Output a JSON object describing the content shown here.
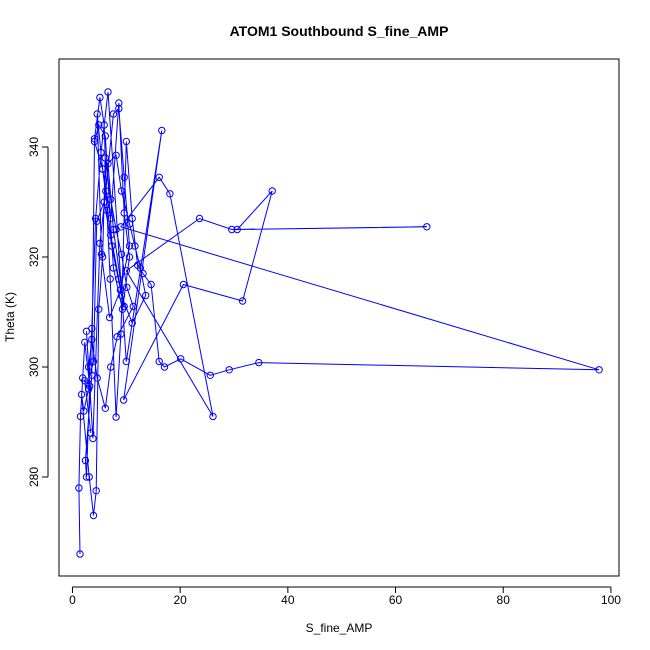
{
  "chart_data": {
    "type": "line",
    "title": "ATOM1 Southbound S_fine_AMP",
    "xlabel": "S_fine_AMP",
    "ylabel": "Theta (K)",
    "xlim": [
      -2.5,
      101.5
    ],
    "ylim": [
      262,
      356
    ],
    "xticks": [
      0,
      20,
      40,
      60,
      80,
      100
    ],
    "yticks": [
      280,
      300,
      320,
      340
    ],
    "x_tick_labels": [
      "0",
      "20",
      "40",
      "60",
      "80",
      "100"
    ],
    "y_tick_labels": [
      "280",
      "300",
      "320",
      "340"
    ],
    "grid": false,
    "legend": "none",
    "color": "#0000ff",
    "series": [
      {
        "marker": "open-circle",
        "points": [
          [
            1.4,
            266.0
          ],
          [
            1.2,
            278.0
          ],
          [
            1.5,
            291.0
          ],
          [
            1.9,
            298.0
          ],
          [
            2.3,
            304.5
          ],
          [
            3.2,
            296.5
          ],
          [
            2.6,
            280.0
          ],
          [
            2.4,
            283.0
          ],
          [
            3.6,
            298.5
          ],
          [
            4.1,
            341.5
          ],
          [
            5.1,
            349.0
          ],
          [
            5.9,
            344.0
          ],
          [
            6.4,
            328.5
          ],
          [
            7.0,
            316.0
          ],
          [
            8.1,
            290.9
          ],
          [
            9.0,
            306.0
          ],
          [
            10.0,
            341.0
          ],
          [
            11.1,
            327.0
          ],
          [
            12.1,
            318.5
          ],
          [
            13.1,
            317.0
          ],
          [
            14.6,
            315.0
          ],
          [
            16.1,
            301.0
          ],
          [
            17.1,
            300.0
          ],
          [
            20.1,
            301.5
          ],
          [
            25.6,
            298.5
          ],
          [
            29.1,
            299.5
          ],
          [
            34.6,
            300.8
          ],
          [
            97.8,
            299.5
          ],
          [
            9.0,
            325.5
          ],
          [
            16.1,
            334.5
          ],
          [
            18.1,
            331.5
          ],
          [
            26.1,
            291.0
          ],
          [
            10.0,
            317.5
          ],
          [
            23.6,
            327.0
          ],
          [
            29.6,
            325.0
          ],
          [
            65.8,
            325.5
          ],
          [
            30.6,
            325.0
          ],
          [
            37.1,
            332.0
          ],
          [
            31.6,
            312.0
          ],
          [
            20.6,
            315.0
          ],
          [
            9.5,
            294.0
          ],
          [
            16.6,
            343.0
          ],
          [
            10.0,
            301.0
          ],
          [
            6.6,
            350.0
          ],
          [
            5.3,
            339.0
          ],
          [
            4.3,
            327.0
          ],
          [
            3.6,
            307.0
          ],
          [
            3.0,
            296.0
          ],
          [
            2.1,
            292.0
          ],
          [
            1.7,
            295.0
          ],
          [
            3.1,
            280.0
          ],
          [
            3.9,
            273.0
          ],
          [
            4.4,
            277.5
          ],
          [
            4.9,
            310.5
          ],
          [
            5.6,
            320.0
          ],
          [
            6.1,
            338.0
          ],
          [
            7.1,
            330.5
          ],
          [
            8.1,
            325.0
          ],
          [
            9.1,
            320.5
          ],
          [
            10.1,
            314.5
          ],
          [
            11.3,
            311.0
          ],
          [
            8.3,
            305.5
          ],
          [
            7.1,
            300.0
          ],
          [
            6.1,
            292.5
          ],
          [
            4.6,
            298.0
          ],
          [
            3.6,
            305.0
          ],
          [
            3.0,
            300.0
          ],
          [
            2.6,
            306.5
          ],
          [
            3.8,
            287.0
          ],
          [
            5.1,
            322.5
          ],
          [
            6.2,
            332.0
          ],
          [
            7.6,
            346.0
          ],
          [
            8.6,
            347.0
          ],
          [
            9.6,
            334.5
          ],
          [
            10.6,
            322.0
          ],
          [
            8.9,
            314.0
          ],
          [
            6.9,
            309.0
          ],
          [
            5.4,
            320.5
          ],
          [
            4.6,
            346.0
          ],
          [
            5.6,
            336.0
          ],
          [
            7.1,
            327.0
          ],
          [
            8.6,
            348.0
          ],
          [
            9.6,
            328.0
          ],
          [
            10.6,
            320.0
          ],
          [
            9.3,
            310.5
          ],
          [
            7.6,
            318.0
          ],
          [
            6.1,
            342.0
          ],
          [
            4.9,
            344.0
          ],
          [
            4.1,
            341.0
          ],
          [
            5.6,
            336.0
          ],
          [
            7.1,
            324.0
          ],
          [
            8.6,
            316.0
          ],
          [
            9.6,
            311.0
          ],
          [
            7.6,
            325.0
          ],
          [
            6.6,
            337.0
          ],
          [
            8.1,
            338.5
          ],
          [
            9.1,
            332.0
          ],
          [
            10.6,
            326.0
          ],
          [
            11.6,
            322.0
          ],
          [
            12.6,
            318.0
          ],
          [
            13.6,
            313.0
          ],
          [
            11.1,
            308.0
          ],
          [
            9.1,
            313.0
          ],
          [
            7.3,
            322.0
          ],
          [
            5.9,
            330.0
          ],
          [
            4.5,
            326.5
          ],
          [
            3.9,
            301.0
          ],
          [
            2.9,
            297.0
          ],
          [
            2.3,
            297.5
          ],
          [
            3.4,
            288.0
          ]
        ]
      }
    ]
  }
}
